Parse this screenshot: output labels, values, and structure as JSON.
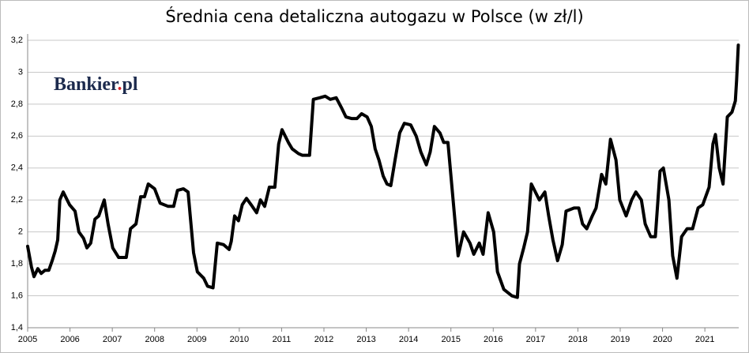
{
  "chart_data": {
    "type": "line",
    "title": "Średnia cena detaliczna autogazu w Polsce (w zł/l)",
    "logo": [
      "Bankier",
      ".",
      "pl"
    ],
    "x": [
      2005.0,
      2005.09,
      2005.15,
      2005.24,
      2005.32,
      2005.41,
      2005.5,
      2005.58,
      2005.65,
      2005.71,
      2005.76,
      2005.84,
      2005.99,
      2006.12,
      2006.21,
      2006.32,
      2006.4,
      2006.49,
      2006.59,
      2006.68,
      2006.81,
      2006.9,
      2007.01,
      2007.15,
      2007.33,
      2007.43,
      2007.56,
      2007.67,
      2007.76,
      2007.85,
      2008.0,
      2008.13,
      2008.32,
      2008.45,
      2008.54,
      2008.68,
      2008.79,
      2008.92,
      2009.01,
      2009.16,
      2009.25,
      2009.38,
      2009.48,
      2009.63,
      2009.76,
      2009.81,
      2009.89,
      2009.98,
      2010.07,
      2010.17,
      2010.28,
      2010.41,
      2010.5,
      2010.6,
      2010.71,
      2010.84,
      2010.93,
      2011.01,
      2011.16,
      2011.25,
      2011.4,
      2011.49,
      2011.66,
      2011.75,
      2011.9,
      2012.03,
      2012.15,
      2012.29,
      2012.41,
      2012.52,
      2012.65,
      2012.78,
      2012.89,
      2013.02,
      2013.12,
      2013.21,
      2013.3,
      2013.4,
      2013.49,
      2013.58,
      2013.68,
      2013.79,
      2013.9,
      2014.05,
      2014.18,
      2014.29,
      2014.42,
      2014.51,
      2014.61,
      2014.74,
      2014.83,
      2014.93,
      2015.17,
      2015.3,
      2015.45,
      2015.54,
      2015.67,
      2015.76,
      2015.88,
      2016.01,
      2016.1,
      2016.25,
      2016.44,
      2016.57,
      2016.62,
      2016.72,
      2016.81,
      2016.9,
      2017.09,
      2017.22,
      2017.31,
      2017.41,
      2017.52,
      2017.63,
      2017.72,
      2017.91,
      2018.02,
      2018.11,
      2018.21,
      2018.34,
      2018.43,
      2018.56,
      2018.66,
      2018.77,
      2018.9,
      2018.99,
      2019.14,
      2019.27,
      2019.37,
      2019.5,
      2019.59,
      2019.72,
      2019.83,
      2019.94,
      2020.02,
      2020.15,
      2020.24,
      2020.34,
      2020.45,
      2020.58,
      2020.71,
      2020.84,
      2020.95,
      2021.1,
      2021.19,
      2021.25,
      2021.34,
      2021.43,
      2021.53,
      2021.64,
      2021.72,
      2021.75,
      2021.79
    ],
    "values": [
      1.91,
      1.78,
      1.72,
      1.77,
      1.74,
      1.76,
      1.76,
      1.82,
      1.88,
      1.95,
      2.2,
      2.25,
      2.17,
      2.13,
      2.0,
      1.96,
      1.9,
      1.93,
      2.08,
      2.1,
      2.2,
      2.05,
      1.9,
      1.84,
      1.84,
      2.02,
      2.05,
      2.22,
      2.22,
      2.3,
      2.27,
      2.18,
      2.16,
      2.16,
      2.26,
      2.27,
      2.25,
      1.87,
      1.75,
      1.71,
      1.66,
      1.65,
      1.93,
      1.92,
      1.89,
      1.94,
      2.1,
      2.07,
      2.17,
      2.21,
      2.17,
      2.12,
      2.2,
      2.16,
      2.28,
      2.28,
      2.55,
      2.64,
      2.56,
      2.52,
      2.49,
      2.48,
      2.48,
      2.83,
      2.84,
      2.85,
      2.83,
      2.84,
      2.78,
      2.72,
      2.71,
      2.71,
      2.74,
      2.72,
      2.66,
      2.52,
      2.45,
      2.35,
      2.3,
      2.29,
      2.45,
      2.62,
      2.68,
      2.67,
      2.6,
      2.5,
      2.42,
      2.5,
      2.66,
      2.62,
      2.56,
      2.56,
      1.85,
      2.0,
      1.93,
      1.86,
      1.93,
      1.86,
      2.12,
      2.0,
      1.75,
      1.64,
      1.6,
      1.59,
      1.8,
      1.9,
      2.0,
      2.3,
      2.2,
      2.25,
      2.1,
      1.95,
      1.82,
      1.92,
      2.13,
      2.15,
      2.15,
      2.05,
      2.02,
      2.1,
      2.15,
      2.36,
      2.3,
      2.58,
      2.45,
      2.2,
      2.1,
      2.2,
      2.25,
      2.2,
      2.05,
      1.97,
      1.97,
      2.38,
      2.4,
      2.2,
      1.85,
      1.71,
      1.97,
      2.02,
      2.02,
      2.15,
      2.17,
      2.28,
      2.55,
      2.61,
      2.4,
      2.3,
      2.72,
      2.75,
      2.82,
      2.95,
      3.17
    ],
    "color": "#000000",
    "xlim": [
      2005,
      2021.8
    ],
    "xticks": [
      2005,
      2006,
      2007,
      2008,
      2009,
      2010,
      2011,
      2012,
      2013,
      2014,
      2015,
      2016,
      2017,
      2018,
      2019,
      2020,
      2021
    ],
    "ylim": [
      1.4,
      3.2
    ],
    "yticks": [
      {
        "value": 1.4,
        "label": "1,4"
      },
      {
        "value": 1.6,
        "label": "1,6"
      },
      {
        "value": 1.8,
        "label": "1,8"
      },
      2,
      {
        "value": 2.2,
        "label": "2,2"
      },
      {
        "value": 2.4,
        "label": "2,4"
      },
      {
        "value": 2.6,
        "label": "2,6"
      },
      {
        "value": 2.8,
        "label": "2,8"
      },
      3,
      {
        "value": 3.2,
        "label": "3,2"
      }
    ],
    "grid": true
  }
}
